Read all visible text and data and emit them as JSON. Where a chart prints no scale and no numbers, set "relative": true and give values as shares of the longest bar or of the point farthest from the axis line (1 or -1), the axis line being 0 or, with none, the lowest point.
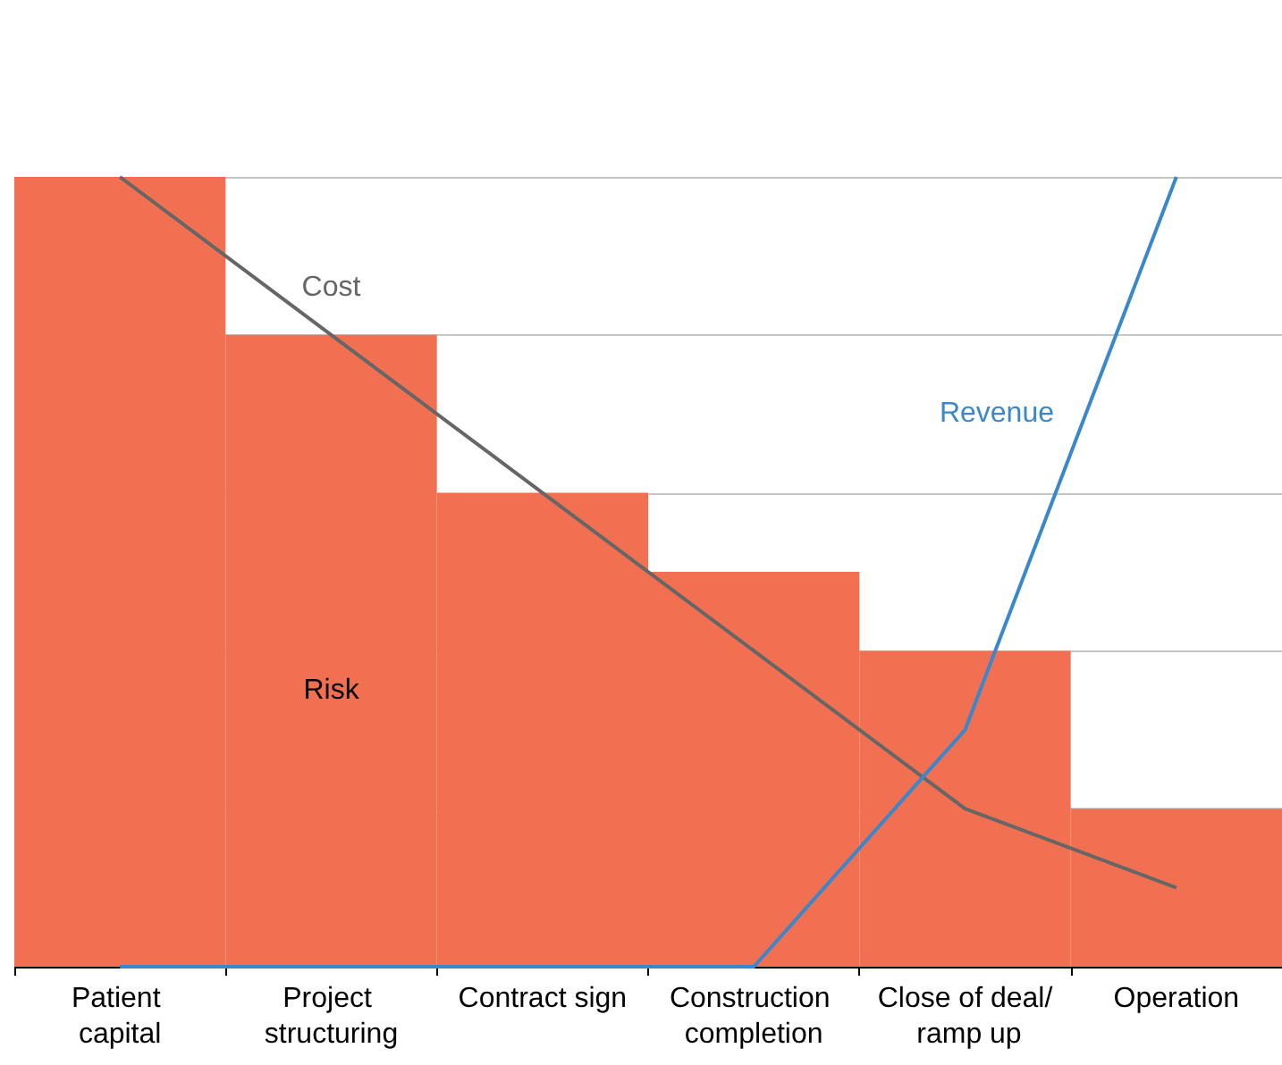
{
  "chart_data": {
    "type": "bar",
    "relative": true,
    "grid": "y",
    "legend": false,
    "marker": "none",
    "categories": [
      "Patient capital",
      "Project structuring",
      "Contract sign",
      "Construction completion",
      "Close of deal/ ramp up",
      "Operation"
    ],
    "series": [
      {
        "name": "Risk",
        "color": "#f27052",
        "values": [
          1,
          0.8,
          0.6,
          0.5,
          0.4,
          0.2
        ]
      },
      {
        "name": "Cost",
        "type": "line",
        "color": "#666666",
        "values": [
          1,
          0.8,
          0.6,
          0.4,
          0.2,
          0.1
        ]
      },
      {
        "name": "Revenue",
        "type": "line",
        "color": "#3a87cc",
        "values": [
          0,
          0,
          0,
          0,
          0.3,
          1
        ]
      }
    ]
  }
}
